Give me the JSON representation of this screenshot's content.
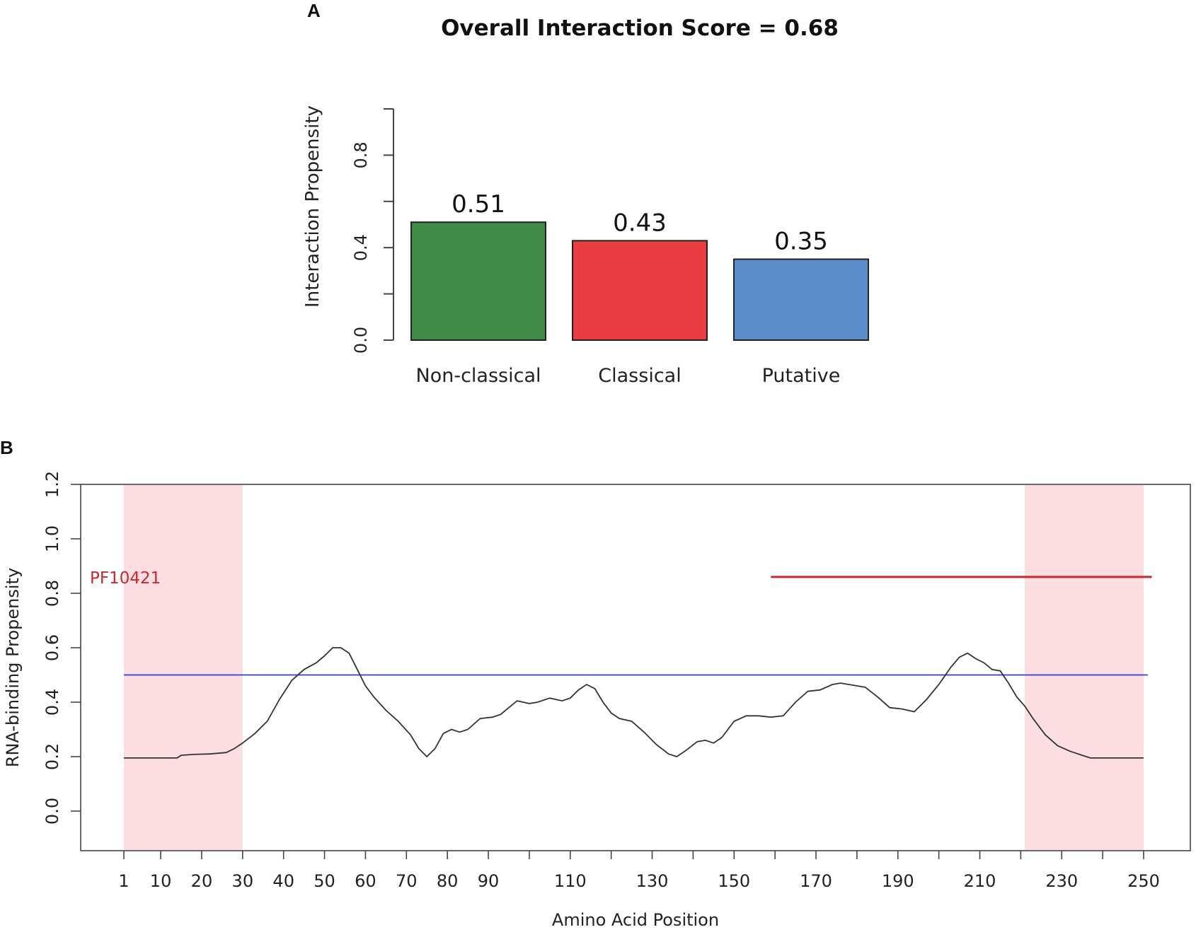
{
  "figure": {
    "panel_a_letter": "A",
    "panel_b_letter": "B"
  },
  "colors": {
    "non_classical": "#3f8a46",
    "classical": "#ea3d41",
    "putative": "#5b8dca",
    "region_shade": "#fbdde2",
    "domain_line": "#c8282e",
    "threshold_line": "#3a3ad0",
    "profile_line": "#333333"
  },
  "chart_data": [
    {
      "type": "bar",
      "title": "Overall Interaction Score =  0.68",
      "categories": [
        "Non-classical",
        "Classical",
        "Putative"
      ],
      "values": [
        0.51,
        0.43,
        0.35
      ],
      "value_labels": [
        "0.51",
        "0.43",
        "0.35"
      ],
      "series_colors": [
        "#3f8a46",
        "#ea3d41",
        "#5b8dca"
      ],
      "xlabel": "",
      "ylabel": "Interaction Propensity",
      "ylim": [
        0,
        1.0
      ],
      "yticks": [
        0.0,
        0.2,
        0.4,
        0.6,
        0.8,
        1.0
      ],
      "ytick_labels": [
        "0.0",
        "0.4",
        "0.8"
      ],
      "grid": false,
      "legend": "none"
    },
    {
      "type": "line",
      "title": "",
      "xlabel": "Amino Acid Position",
      "ylabel": "RNA-binding Propensity",
      "xlim": [
        1,
        252
      ],
      "ylim": [
        -0.15,
        1.2
      ],
      "xtick_labels": [
        "1",
        "10",
        "20",
        "30",
        "40",
        "50",
        "60",
        "70",
        "80",
        "90",
        "110",
        "130",
        "150",
        "170",
        "190",
        "210",
        "230",
        "250"
      ],
      "xticks": [
        1,
        10,
        20,
        30,
        40,
        50,
        60,
        70,
        80,
        90,
        100,
        110,
        120,
        130,
        140,
        150,
        160,
        170,
        180,
        190,
        200,
        210,
        220,
        230,
        240,
        250
      ],
      "ytick_labels": [
        "0.0",
        "0.2",
        "0.4",
        "0.6",
        "0.8",
        "1.0",
        "1.2"
      ],
      "yticks": [
        0.0,
        0.2,
        0.4,
        0.6,
        0.8,
        1.0,
        1.2
      ],
      "shaded_regions": [
        [
          1,
          30
        ],
        [
          221,
          250
        ]
      ],
      "threshold": {
        "y": 0.5,
        "x_range": [
          1,
          251
        ]
      },
      "domain": {
        "label": "PF10421",
        "x_range": [
          159,
          252
        ],
        "y": 0.86
      },
      "grid": false,
      "legend": "none",
      "series": [
        {
          "x": [
            1,
            5,
            10,
            14,
            15,
            18,
            22,
            26,
            28,
            30,
            33,
            36,
            39,
            42,
            45,
            48,
            50,
            52,
            54,
            56,
            58,
            60,
            62,
            65,
            68,
            71,
            73,
            75,
            77,
            79,
            81,
            83,
            85,
            88,
            91,
            93,
            95,
            97,
            100,
            102,
            105,
            108,
            110,
            112,
            114,
            116,
            118,
            120,
            122,
            125,
            128,
            131,
            134,
            136,
            138,
            141,
            143,
            145,
            147,
            150,
            153,
            156,
            159,
            162,
            165,
            168,
            171,
            174,
            176,
            178,
            180,
            182,
            185,
            188,
            191,
            194,
            197,
            200,
            203,
            205,
            207,
            209,
            211,
            213,
            215,
            217,
            219,
            221,
            223,
            226,
            229,
            232,
            235,
            237,
            240,
            244,
            248,
            250
          ],
          "y": [
            0.195,
            0.195,
            0.195,
            0.195,
            0.205,
            0.208,
            0.21,
            0.215,
            0.23,
            0.25,
            0.285,
            0.33,
            0.41,
            0.48,
            0.52,
            0.545,
            0.57,
            0.6,
            0.6,
            0.58,
            0.52,
            0.46,
            0.42,
            0.37,
            0.33,
            0.28,
            0.23,
            0.2,
            0.23,
            0.285,
            0.3,
            0.29,
            0.3,
            0.34,
            0.345,
            0.355,
            0.38,
            0.405,
            0.395,
            0.4,
            0.415,
            0.405,
            0.415,
            0.445,
            0.465,
            0.45,
            0.4,
            0.36,
            0.34,
            0.33,
            0.29,
            0.245,
            0.21,
            0.2,
            0.22,
            0.255,
            0.26,
            0.25,
            0.27,
            0.33,
            0.35,
            0.35,
            0.345,
            0.35,
            0.4,
            0.44,
            0.445,
            0.465,
            0.47,
            0.465,
            0.46,
            0.455,
            0.42,
            0.38,
            0.375,
            0.365,
            0.41,
            0.465,
            0.53,
            0.565,
            0.58,
            0.56,
            0.545,
            0.52,
            0.515,
            0.47,
            0.42,
            0.385,
            0.34,
            0.28,
            0.24,
            0.22,
            0.205,
            0.195,
            0.195,
            0.195,
            0.195,
            0.195
          ]
        }
      ]
    }
  ]
}
